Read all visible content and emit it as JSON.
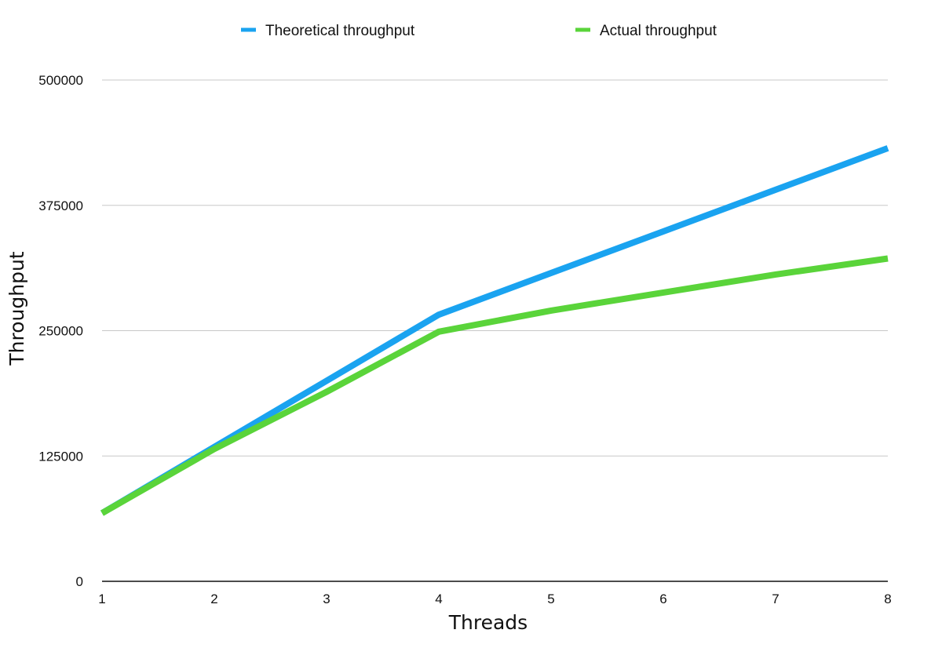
{
  "chart_data": {
    "type": "line",
    "title": "",
    "xlabel": "Threads",
    "ylabel": "Throughput",
    "x": [
      1,
      2,
      3,
      4,
      5,
      6,
      7,
      8
    ],
    "x_ticks": [
      "1",
      "2",
      "3",
      "4",
      "5",
      "6",
      "7",
      "8"
    ],
    "xlim": [
      1,
      8
    ],
    "ylim": [
      0,
      500000
    ],
    "y_ticks": [
      0,
      125000,
      250000,
      375000,
      500000
    ],
    "y_tick_labels": [
      "0",
      "125000",
      "250000",
      "375000",
      "500000"
    ],
    "grid": "horizontal",
    "legend_position": "top",
    "series": [
      {
        "name": "Theoretical throughput",
        "color": "#1aa3f0",
        "x": [
          1,
          2,
          3,
          4,
          5,
          6,
          7,
          8
        ],
        "values": [
          68000,
          134000,
          200000,
          266000,
          307500,
          349000,
          390500,
          432000
        ]
      },
      {
        "name": "Actual throughput",
        "color": "#5ad43a",
        "x": [
          1,
          2,
          3,
          4,
          5,
          6,
          7,
          8
        ],
        "values": [
          68000,
          132000,
          189000,
          249000,
          270000,
          288000,
          306000,
          322000
        ]
      }
    ]
  }
}
